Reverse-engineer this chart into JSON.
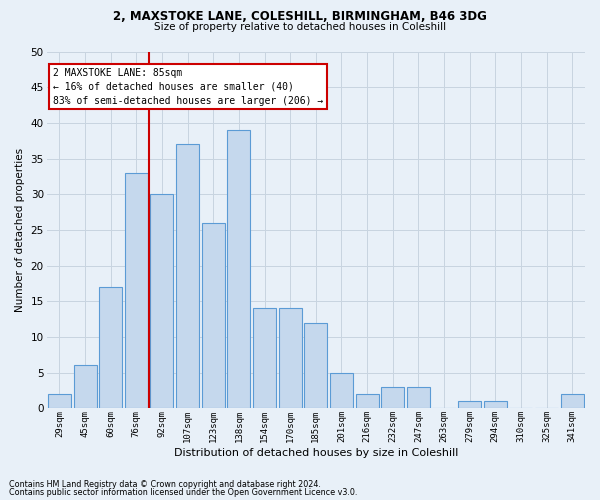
{
  "title_line1": "2, MAXSTOKE LANE, COLESHILL, BIRMINGHAM, B46 3DG",
  "title_line2": "Size of property relative to detached houses in Coleshill",
  "xlabel": "Distribution of detached houses by size in Coleshill",
  "ylabel": "Number of detached properties",
  "footnote1": "Contains HM Land Registry data © Crown copyright and database right 2024.",
  "footnote2": "Contains public sector information licensed under the Open Government Licence v3.0.",
  "bar_labels": [
    "29sqm",
    "45sqm",
    "60sqm",
    "76sqm",
    "92sqm",
    "107sqm",
    "123sqm",
    "138sqm",
    "154sqm",
    "170sqm",
    "185sqm",
    "201sqm",
    "216sqm",
    "232sqm",
    "247sqm",
    "263sqm",
    "279sqm",
    "294sqm",
    "310sqm",
    "325sqm",
    "341sqm"
  ],
  "bar_values": [
    2,
    6,
    17,
    33,
    30,
    37,
    26,
    39,
    14,
    14,
    12,
    5,
    2,
    3,
    3,
    0,
    1,
    1,
    0,
    0,
    2
  ],
  "bar_color": "#c5d8ed",
  "bar_edge_color": "#5b9bd5",
  "grid_color": "#c8d4e0",
  "background_color": "#e8f0f8",
  "vline_color": "#cc0000",
  "vline_x": 3.5,
  "annotation_text": "2 MAXSTOKE LANE: 85sqm\n← 16% of detached houses are smaller (40)\n83% of semi-detached houses are larger (206) →",
  "annotation_box_color": "#ffffff",
  "annotation_box_edge": "#cc0000",
  "ylim": [
    0,
    50
  ],
  "yticks": [
    0,
    5,
    10,
    15,
    20,
    25,
    30,
    35,
    40,
    45,
    50
  ]
}
